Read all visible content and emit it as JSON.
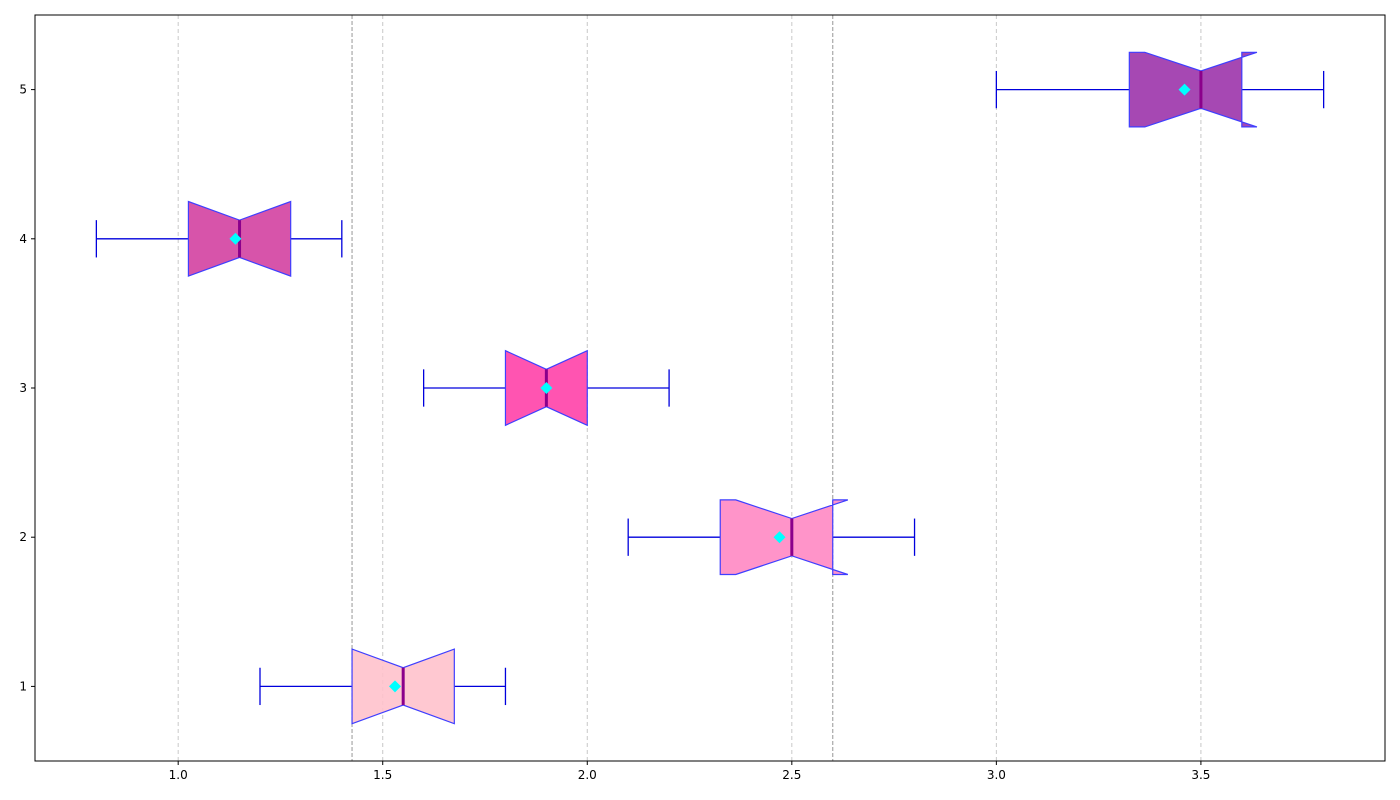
{
  "chart_data": {
    "type": "box",
    "orientation": "horizontal",
    "notched": true,
    "title": "",
    "xlabel": "",
    "ylabel": "",
    "xlim": [
      0.65,
      3.95
    ],
    "ylim": [
      0.5,
      5.5
    ],
    "xticks": [
      1.0,
      1.5,
      2.0,
      2.5,
      3.0,
      3.5
    ],
    "xtick_labels": [
      "1.0",
      "1.5",
      "2.0",
      "2.5",
      "3.0",
      "3.5"
    ],
    "yticks": [
      1,
      2,
      3,
      4,
      5
    ],
    "ytick_labels": [
      "1",
      "2",
      "3",
      "4",
      "5"
    ],
    "grid": "vertical dashed",
    "reference_lines": [
      1.425,
      2.6
    ],
    "boxes": [
      {
        "position": 1,
        "whisker_low": 1.2,
        "q1": 1.425,
        "median": 1.55,
        "q3": 1.675,
        "whisker_high": 1.8,
        "mean": 1.53,
        "notch_low": 1.425,
        "notch_high": 1.675,
        "color": "#ffc0cb"
      },
      {
        "position": 2,
        "whisker_low": 2.1,
        "q1": 2.325,
        "median": 2.5,
        "q3": 2.6,
        "whisker_high": 2.8,
        "mean": 2.47,
        "notch_low": 2.363,
        "notch_high": 2.637,
        "color": "#ff85c1"
      },
      {
        "position": 3,
        "whisker_low": 1.6,
        "q1": 1.8,
        "median": 1.9,
        "q3": 2.0,
        "whisker_high": 2.2,
        "mean": 1.9,
        "notch_low": 1.8,
        "notch_high": 2.0,
        "color": "#ff3ca6"
      },
      {
        "position": 4,
        "whisker_low": 0.8,
        "q1": 1.025,
        "median": 1.15,
        "q3": 1.275,
        "whisker_high": 1.4,
        "mean": 1.14,
        "notch_low": 1.025,
        "notch_high": 1.275,
        "color": "#d13c9e"
      },
      {
        "position": 5,
        "whisker_low": 3.0,
        "q1": 3.325,
        "median": 3.5,
        "q3": 3.6,
        "whisker_high": 3.8,
        "mean": 3.46,
        "notch_low": 3.363,
        "notch_high": 3.637,
        "color": "#9a2fa8"
      }
    ],
    "colors": {
      "box_edge": "#3f3fff",
      "whisker": "#0000dd",
      "median": "#8b008b",
      "mean_marker": "#00ffff",
      "grid": "#c8c8c8",
      "reference_line": "#a8a8a8"
    }
  }
}
